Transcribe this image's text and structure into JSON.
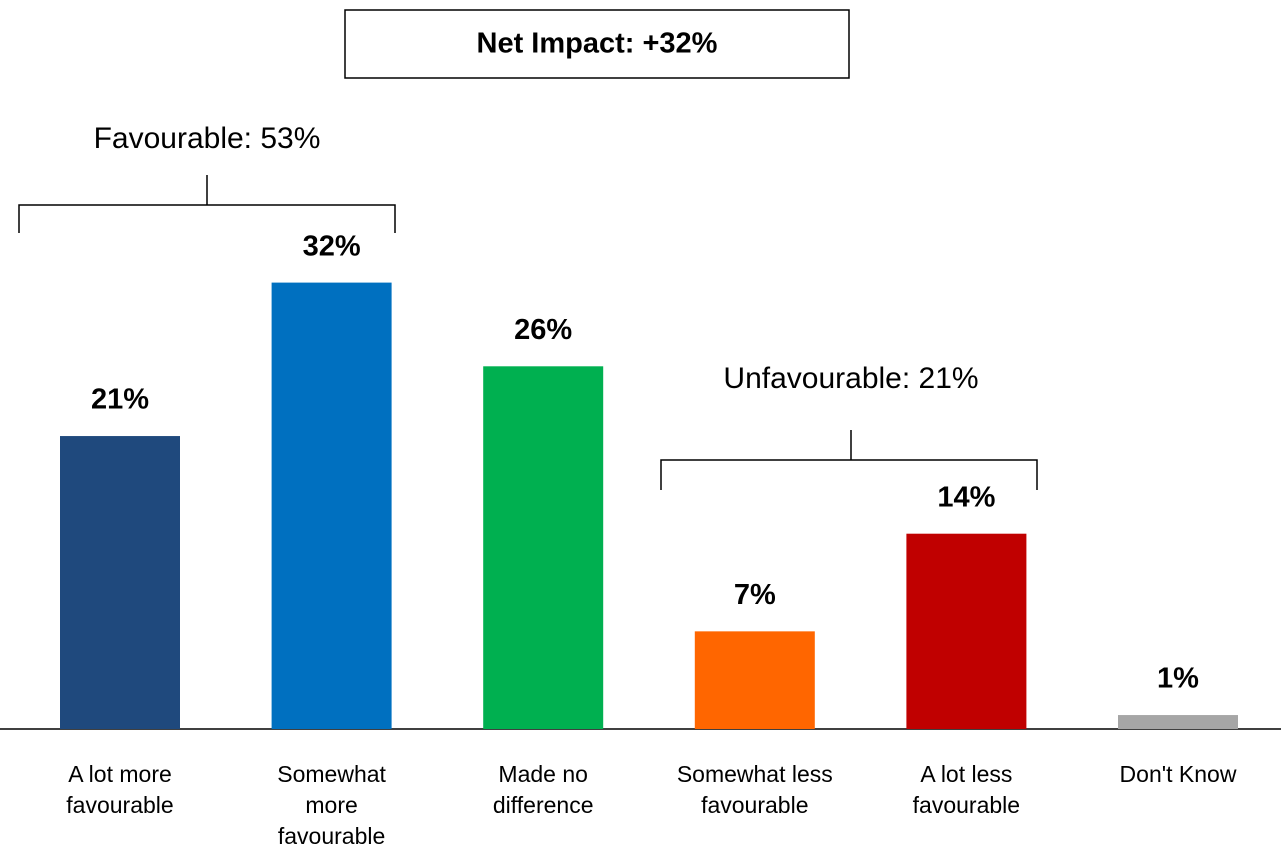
{
  "chart_data": {
    "type": "bar",
    "title": "Net Impact: +32%",
    "categories": [
      "A lot more\nfavourable",
      "Somewhat\nmore\nfavourable",
      "Made no\ndifference",
      "Somewhat less\nfavourable",
      "A lot less\nfavourable",
      "Don't Know"
    ],
    "values": [
      21,
      32,
      26,
      7,
      14,
      1
    ],
    "value_labels": [
      "21%",
      "32%",
      "26%",
      "7%",
      "14%",
      "1%"
    ],
    "colors": [
      "#1f497d",
      "#0070c0",
      "#00b050",
      "#ff6600",
      "#c00000",
      "#a6a6a6"
    ],
    "annotations": [
      "Favourable: 53%",
      "Unfavourable: 21%"
    ]
  }
}
